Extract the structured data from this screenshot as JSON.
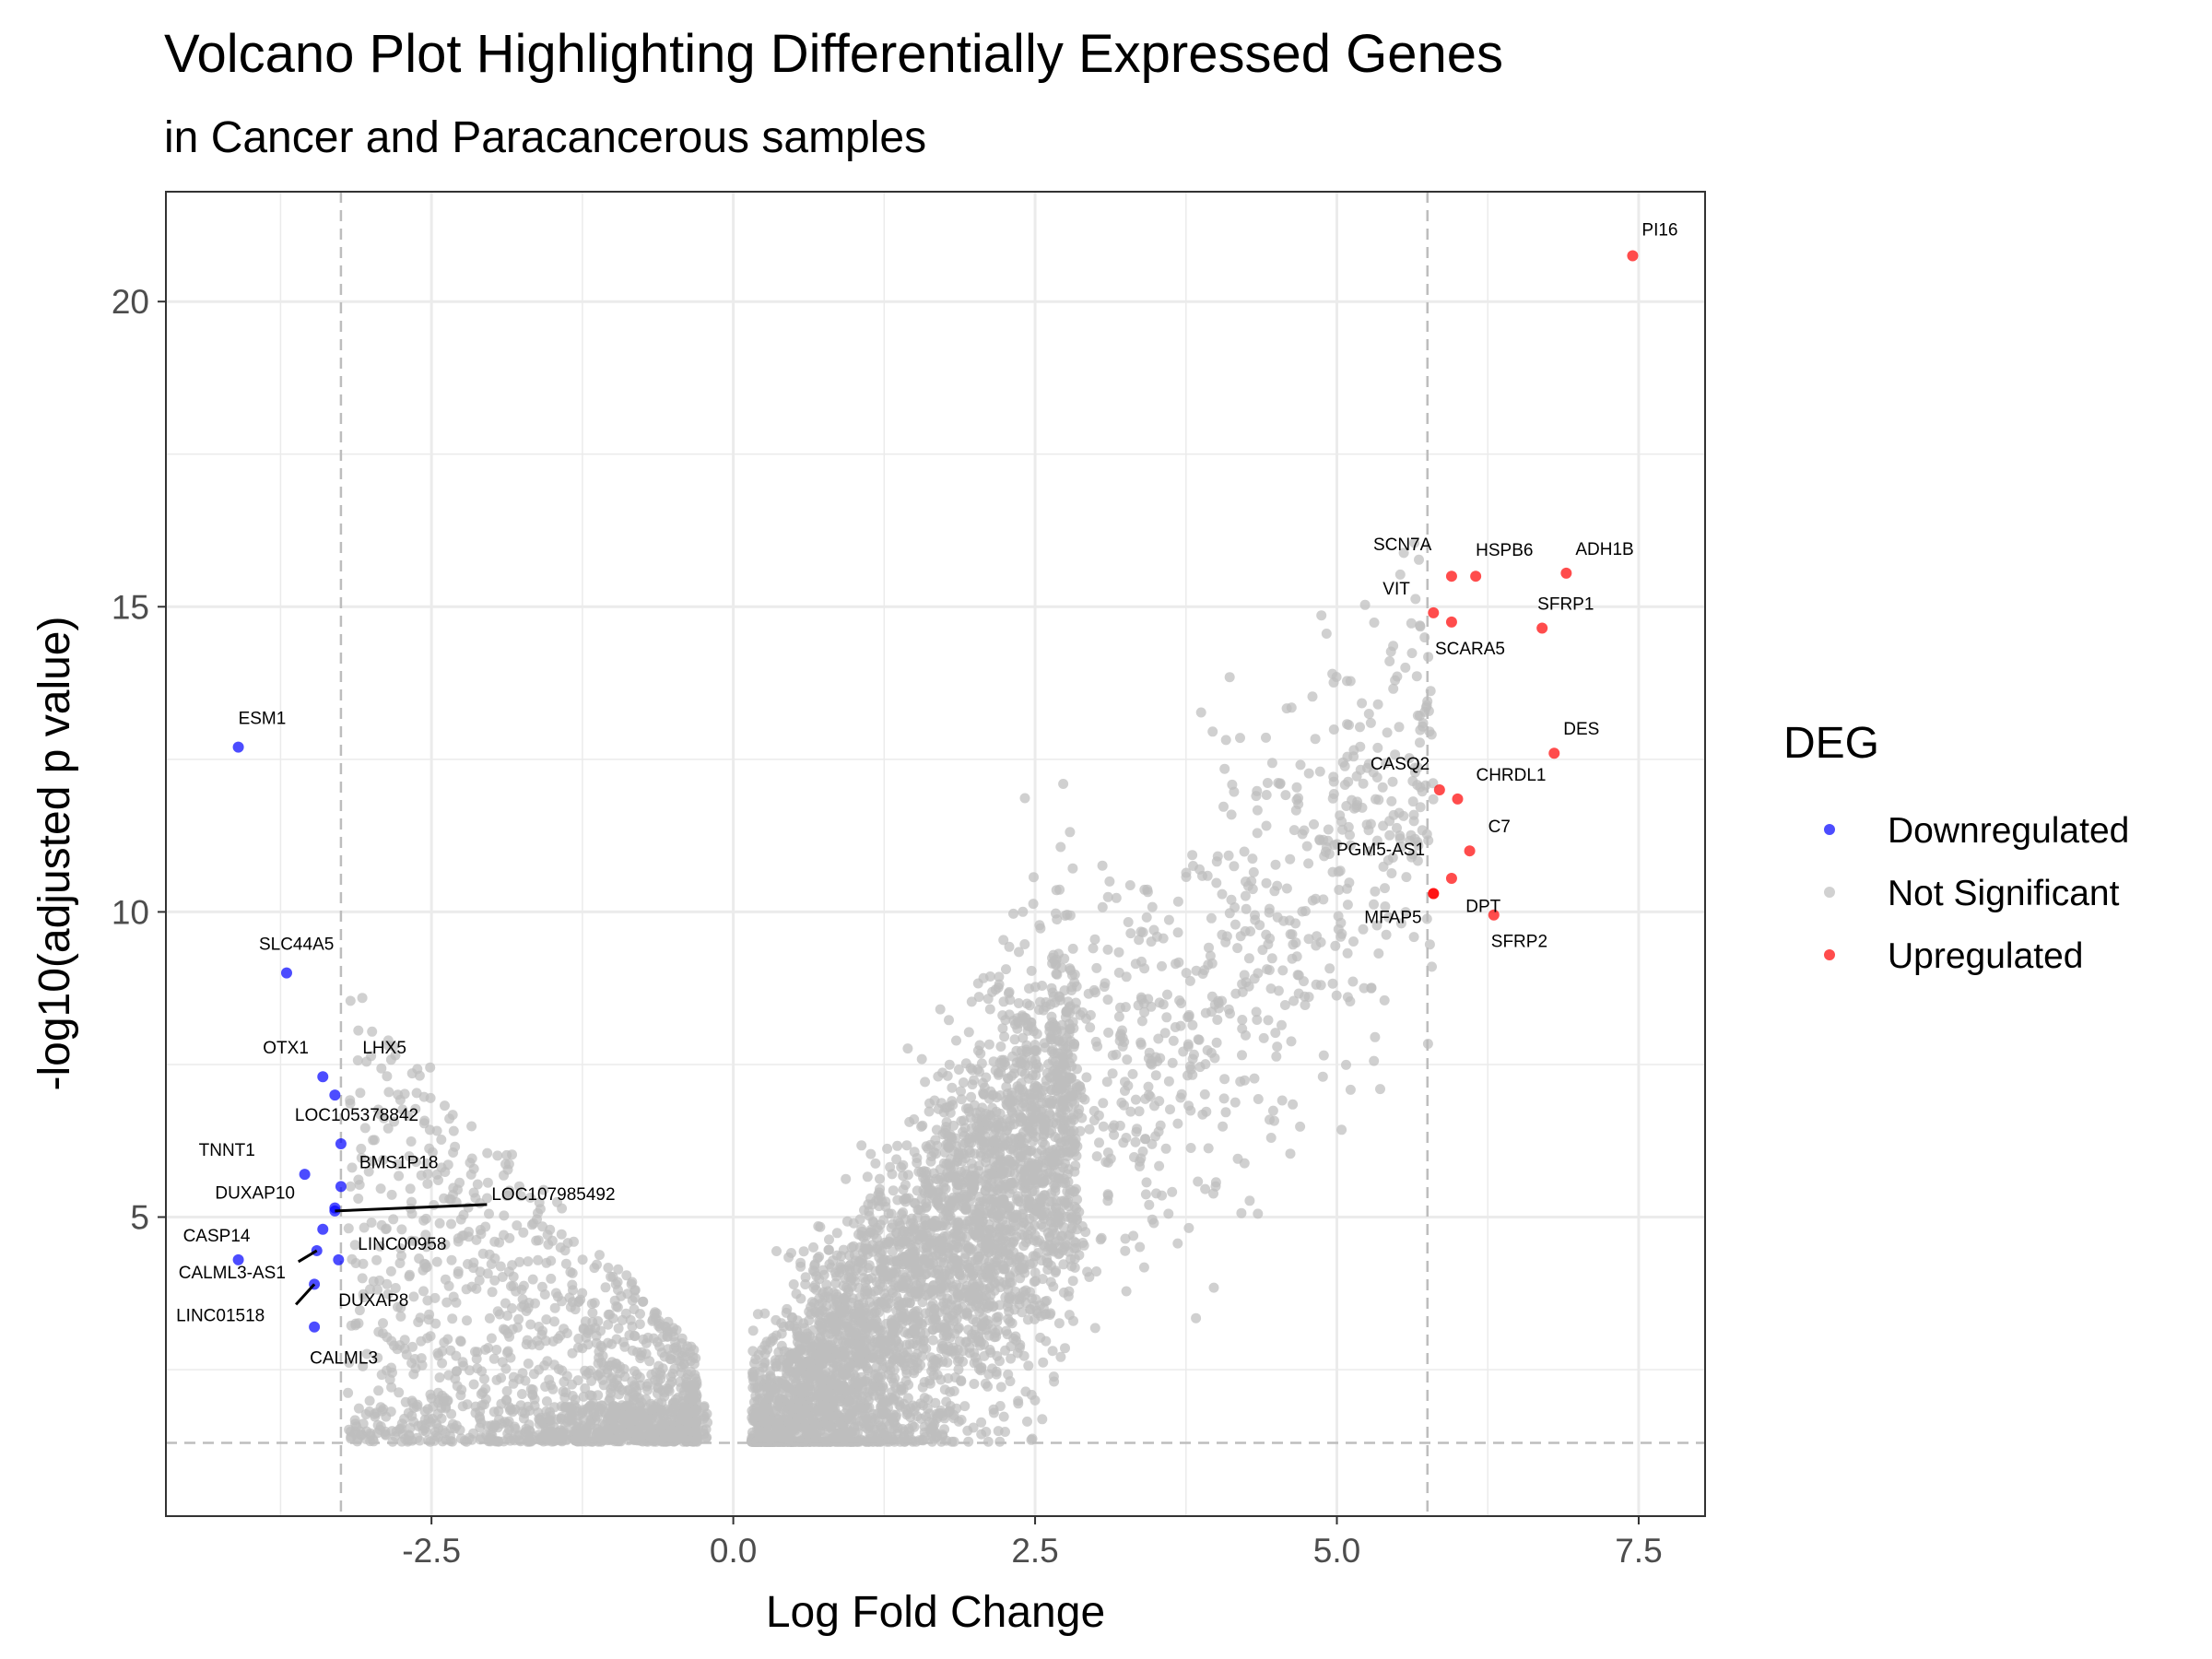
{
  "chart_data": {
    "type": "scatter",
    "title": "Volcano Plot Highlighting Differentially Expressed Genes",
    "subtitle": "in Cancer and Paracancerous samples",
    "xlabel": "Log Fold Change",
    "ylabel": "-log10(adjusted p value)",
    "xlim": [
      -4.7,
      8.05
    ],
    "ylim": [
      0.1,
      21.8
    ],
    "x_ticks": [
      -2.5,
      0.0,
      2.5,
      5.0,
      7.5
    ],
    "x_tick_labels": [
      "-2.5",
      "0.0",
      "2.5",
      "5.0",
      "7.5"
    ],
    "y_ticks": [
      5,
      10,
      15,
      20
    ],
    "y_tick_labels": [
      "5",
      "10",
      "15",
      "20"
    ],
    "grid": true,
    "threshold_lines": {
      "x": [
        -3.25,
        5.75
      ],
      "y": 1.3
    },
    "legend": {
      "title": "DEG",
      "position": "right",
      "entries": [
        {
          "name": "Downregulated",
          "color": "#0000ff"
        },
        {
          "name": "Not Significant",
          "color": "#bebebe"
        },
        {
          "name": "Upregulated",
          "color": "#ff0000"
        }
      ]
    },
    "not_significant_cloud": {
      "color": "#bebebe",
      "note_visible": false,
      "points_seed": 42
    },
    "series": [
      {
        "name": "Downregulated",
        "color": "#0000ff",
        "points": [
          {
            "label": "ESM1",
            "x": -4.1,
            "y": 12.7
          },
          {
            "label": "SLC44A5",
            "x": -3.7,
            "y": 9.0
          },
          {
            "label": "LHX5",
            "x": -3.3,
            "y": 7.0
          },
          {
            "label": "OTX1",
            "x": -3.4,
            "y": 7.3
          },
          {
            "label": "LOC105378842",
            "x": -3.25,
            "y": 6.2
          },
          {
            "label": "TNNT1",
            "x": -3.55,
            "y": 5.7
          },
          {
            "label": "BMS1P18",
            "x": -3.25,
            "y": 5.5
          },
          {
            "label": "DUXAP10",
            "x": -3.3,
            "y": 5.15
          },
          {
            "label": "LOC107985492",
            "x": -3.3,
            "y": 5.1
          },
          {
            "label": "LINC00958",
            "x": -3.4,
            "y": 4.8
          },
          {
            "label": "CASP14",
            "x": -4.1,
            "y": 4.3
          },
          {
            "label": "CALML3-AS1",
            "x": -3.45,
            "y": 4.45
          },
          {
            "label": "DUXAP8",
            "x": -3.27,
            "y": 4.3
          },
          {
            "label": "LINC01518",
            "x": -3.47,
            "y": 3.9
          },
          {
            "label": "CALML3",
            "x": -3.47,
            "y": 3.2
          }
        ]
      },
      {
        "name": "Upregulated",
        "color": "#ff0000",
        "points": [
          {
            "label": "PI16",
            "x": 7.45,
            "y": 20.75
          },
          {
            "label": "SCN7A",
            "x": 5.95,
            "y": 15.5
          },
          {
            "label": "HSPB6",
            "x": 6.15,
            "y": 15.5
          },
          {
            "label": "ADH1B",
            "x": 6.9,
            "y": 15.55
          },
          {
            "label": "VIT",
            "x": 5.8,
            "y": 14.9
          },
          {
            "label": "SCARA5",
            "x": 5.95,
            "y": 14.75
          },
          {
            "label": "SFRP1",
            "x": 6.7,
            "y": 14.65
          },
          {
            "label": "DES",
            "x": 6.8,
            "y": 12.6
          },
          {
            "label": "CASQ2",
            "x": 5.85,
            "y": 12.0
          },
          {
            "label": "CHRDL1",
            "x": 6.0,
            "y": 11.85
          },
          {
            "label": "C7",
            "x": 6.1,
            "y": 11.0
          },
          {
            "label": "PGM5-AS1",
            "x": 5.95,
            "y": 10.55
          },
          {
            "label": "DPT",
            "x": 5.8,
            "y": 10.3
          },
          {
            "label": "MFAP5",
            "x": 5.8,
            "y": 10.3
          },
          {
            "label": "SFRP2",
            "x": 6.3,
            "y": 9.95
          }
        ]
      }
    ]
  }
}
